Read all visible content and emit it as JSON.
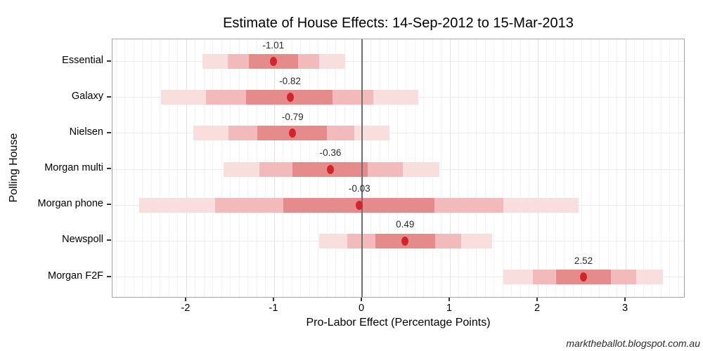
{
  "watermark": "marktheballot.blogspot.com.au",
  "chart_data": {
    "type": "scatter",
    "subtype": "nested-credible-interval-dot-plot",
    "title": "Estimate of House Effects: 14-Sep-2012 to 15-Mar-2013",
    "xlabel": "Pro-Labor Effect (Percentage Points)",
    "ylabel": "Polling House",
    "xlim": [
      -2.84,
      3.68
    ],
    "x_ticks": [
      -2,
      -1,
      0,
      1,
      2,
      3
    ],
    "x_minor_grid_step": 0.1,
    "grid": "on",
    "legend": "none",
    "zero_line": 0,
    "categories": [
      "Essential",
      "Galaxy",
      "Nielsen",
      "Morgan multi",
      "Morgan phone",
      "Newspoll",
      "Morgan F2F"
    ],
    "estimates": [
      -1.01,
      -0.82,
      -0.79,
      -0.36,
      -0.03,
      0.49,
      2.52
    ],
    "estimate_labels": [
      "-1.01",
      "-0.82",
      "-0.79",
      "-0.36",
      "-0.03",
      "0.49",
      "2.52"
    ],
    "intervals": {
      "outer": [
        [
          -1.82,
          -0.19
        ],
        [
          -2.29,
          0.64
        ],
        [
          -1.92,
          0.31
        ],
        [
          -1.58,
          0.88
        ],
        [
          -2.54,
          2.46
        ],
        [
          -0.49,
          1.48
        ],
        [
          1.61,
          3.42
        ]
      ],
      "middle": [
        [
          -1.53,
          -0.49
        ],
        [
          -1.78,
          0.13
        ],
        [
          -1.52,
          -0.09
        ],
        [
          -1.17,
          0.46
        ],
        [
          -1.67,
          1.61
        ],
        [
          -0.17,
          1.13
        ],
        [
          1.94,
          3.12
        ]
      ],
      "inner": [
        [
          -1.29,
          -0.73
        ],
        [
          -1.32,
          -0.34
        ],
        [
          -1.19,
          -0.4
        ],
        [
          -0.79,
          0.06
        ],
        [
          -0.9,
          0.82
        ],
        [
          0.15,
          0.83
        ],
        [
          2.21,
          2.83
        ]
      ]
    },
    "colors": {
      "outer_band": "#f9dede",
      "middle_band": "#f2baba",
      "inner_band": "#e68b8b",
      "dot": "#d2242b",
      "zero_line": "#6e6e6e",
      "minor_grid": "#f3f3f3",
      "major_grid": "#e2e2e2",
      "row_grid": "#ececec",
      "panel_border": "#a3a3a3"
    }
  }
}
